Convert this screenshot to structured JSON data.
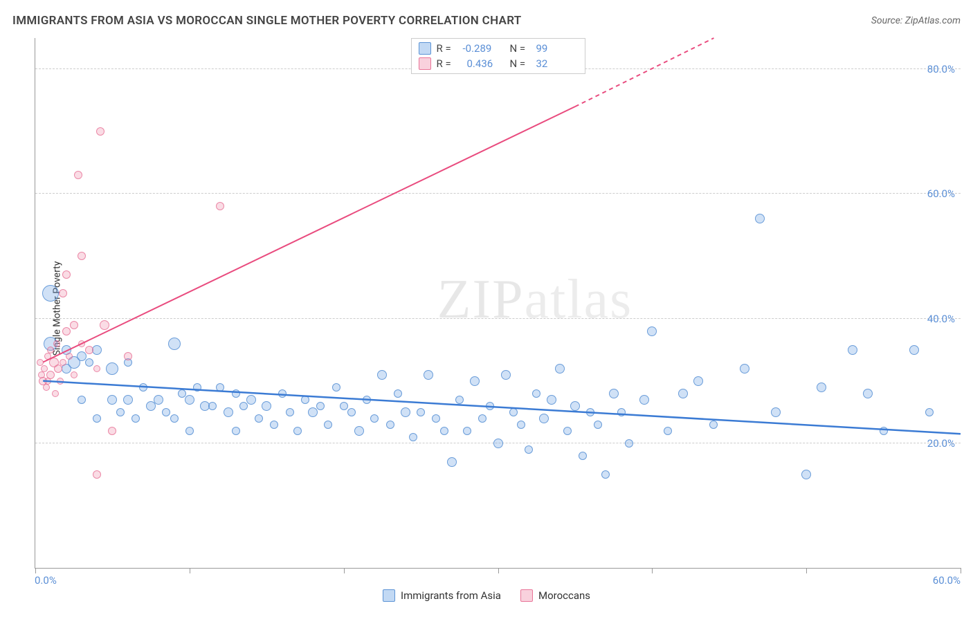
{
  "title": "IMMIGRANTS FROM ASIA VS MOROCCAN SINGLE MOTHER POVERTY CORRELATION CHART",
  "source": "Source: ZipAtlas.com",
  "y_axis_label": "Single Mother Poverty",
  "watermark": {
    "part1": "ZIP",
    "part2": "atlas"
  },
  "chart": {
    "type": "scatter",
    "xlim": [
      0,
      60
    ],
    "ylim": [
      0,
      85
    ],
    "x_ticks": [
      0,
      10,
      20,
      30,
      40,
      50,
      60
    ],
    "x_tick_labels": {
      "0": "0.0%",
      "60": "60.0%"
    },
    "y_ticks": [
      20,
      40,
      60,
      80
    ],
    "y_tick_labels": {
      "20": "20.0%",
      "40": "40.0%",
      "60": "60.0%",
      "80": "80.0%"
    },
    "background_color": "#ffffff",
    "grid_color": "#cccccc",
    "axis_color": "#999999",
    "tick_label_color": "#5b8fd6",
    "series": [
      {
        "name": "Immigrants from Asia",
        "color_fill": "rgba(120,170,230,0.35)",
        "color_stroke": "rgba(80,140,210,0.8)",
        "R": "-0.289",
        "N": "99",
        "trend_color": "#3b7bd4",
        "trend_start": [
          0.5,
          30
        ],
        "trend_end": [
          60,
          21.5
        ],
        "trend_dashed_from": null,
        "points": [
          [
            1,
            44,
            24
          ],
          [
            1,
            36,
            20
          ],
          [
            2,
            32,
            14
          ],
          [
            2,
            35,
            14
          ],
          [
            2.5,
            33,
            18
          ],
          [
            3,
            34,
            14
          ],
          [
            3,
            27,
            12
          ],
          [
            3.5,
            33,
            12
          ],
          [
            4,
            35,
            14
          ],
          [
            4,
            24,
            12
          ],
          [
            5,
            32,
            18
          ],
          [
            5,
            27,
            14
          ],
          [
            5.5,
            25,
            12
          ],
          [
            6,
            33,
            12
          ],
          [
            6,
            27,
            14
          ],
          [
            6.5,
            24,
            12
          ],
          [
            7,
            29,
            12
          ],
          [
            7.5,
            26,
            14
          ],
          [
            8,
            27,
            14
          ],
          [
            8.5,
            25,
            12
          ],
          [
            9,
            36,
            18
          ],
          [
            9,
            24,
            12
          ],
          [
            9.5,
            28,
            12
          ],
          [
            10,
            27,
            14
          ],
          [
            10,
            22,
            12
          ],
          [
            10.5,
            29,
            12
          ],
          [
            11,
            26,
            14
          ],
          [
            11.5,
            26,
            12
          ],
          [
            12,
            29,
            12
          ],
          [
            12.5,
            25,
            14
          ],
          [
            13,
            22,
            12
          ],
          [
            13,
            28,
            12
          ],
          [
            13.5,
            26,
            12
          ],
          [
            14,
            27,
            14
          ],
          [
            14.5,
            24,
            12
          ],
          [
            15,
            26,
            14
          ],
          [
            15.5,
            23,
            12
          ],
          [
            16,
            28,
            12
          ],
          [
            16.5,
            25,
            12
          ],
          [
            17,
            22,
            12
          ],
          [
            17.5,
            27,
            12
          ],
          [
            18,
            25,
            14
          ],
          [
            18.5,
            26,
            12
          ],
          [
            19,
            23,
            12
          ],
          [
            19.5,
            29,
            12
          ],
          [
            20,
            26,
            12
          ],
          [
            20.5,
            25,
            12
          ],
          [
            21,
            22,
            14
          ],
          [
            21.5,
            27,
            12
          ],
          [
            22,
            24,
            12
          ],
          [
            22.5,
            31,
            14
          ],
          [
            23,
            23,
            12
          ],
          [
            23.5,
            28,
            12
          ],
          [
            24,
            25,
            14
          ],
          [
            24.5,
            21,
            12
          ],
          [
            25,
            25,
            12
          ],
          [
            25.5,
            31,
            14
          ],
          [
            26,
            24,
            12
          ],
          [
            26.5,
            22,
            12
          ],
          [
            27,
            17,
            14
          ],
          [
            27.5,
            27,
            12
          ],
          [
            28,
            22,
            12
          ],
          [
            28.5,
            30,
            14
          ],
          [
            29,
            24,
            12
          ],
          [
            29.5,
            26,
            12
          ],
          [
            30,
            20,
            14
          ],
          [
            30.5,
            31,
            14
          ],
          [
            31,
            25,
            12
          ],
          [
            31.5,
            23,
            12
          ],
          [
            32,
            19,
            12
          ],
          [
            32.5,
            28,
            12
          ],
          [
            33,
            24,
            14
          ],
          [
            33.5,
            27,
            14
          ],
          [
            34,
            32,
            14
          ],
          [
            34.5,
            22,
            12
          ],
          [
            35,
            26,
            14
          ],
          [
            35.5,
            18,
            12
          ],
          [
            36,
            25,
            12
          ],
          [
            36.5,
            23,
            12
          ],
          [
            37,
            15,
            12
          ],
          [
            37.5,
            28,
            14
          ],
          [
            38,
            25,
            12
          ],
          [
            38.5,
            20,
            12
          ],
          [
            39.5,
            27,
            14
          ],
          [
            40,
            38,
            14
          ],
          [
            41,
            22,
            12
          ],
          [
            42,
            28,
            14
          ],
          [
            43,
            30,
            14
          ],
          [
            44,
            23,
            12
          ],
          [
            46,
            32,
            14
          ],
          [
            47,
            56,
            14
          ],
          [
            48,
            25,
            14
          ],
          [
            50,
            15,
            14
          ],
          [
            51,
            29,
            14
          ],
          [
            53,
            35,
            14
          ],
          [
            54,
            28,
            14
          ],
          [
            55,
            22,
            12
          ],
          [
            57,
            35,
            14
          ],
          [
            58,
            25,
            12
          ]
        ]
      },
      {
        "name": "Moroccans",
        "color_fill": "rgba(240,140,170,0.3)",
        "color_stroke": "rgba(230,100,140,0.7)",
        "R": "0.436",
        "N": "32",
        "trend_color": "#e94b7e",
        "trend_start": [
          0.5,
          33
        ],
        "trend_end": [
          44,
          85
        ],
        "trend_dashed_from": [
          35,
          74
        ],
        "points": [
          [
            0.3,
            33,
            10
          ],
          [
            0.4,
            31,
            10
          ],
          [
            0.5,
            30,
            12
          ],
          [
            0.6,
            32,
            10
          ],
          [
            0.7,
            29,
            10
          ],
          [
            0.8,
            34,
            10
          ],
          [
            0.8,
            30,
            10
          ],
          [
            1,
            31,
            12
          ],
          [
            1,
            35,
            10
          ],
          [
            1.2,
            33,
            14
          ],
          [
            1.3,
            28,
            10
          ],
          [
            1.4,
            36,
            10
          ],
          [
            1.5,
            32,
            12
          ],
          [
            1.6,
            30,
            10
          ],
          [
            1.8,
            44,
            12
          ],
          [
            1.8,
            33,
            10
          ],
          [
            2,
            38,
            12
          ],
          [
            2,
            47,
            12
          ],
          [
            2.2,
            34,
            10
          ],
          [
            2.5,
            31,
            10
          ],
          [
            2.5,
            39,
            12
          ],
          [
            2.8,
            63,
            12
          ],
          [
            3,
            50,
            12
          ],
          [
            3,
            36,
            10
          ],
          [
            3.5,
            35,
            12
          ],
          [
            4,
            15,
            12
          ],
          [
            4,
            32,
            10
          ],
          [
            4.5,
            39,
            14
          ],
          [
            5,
            22,
            12
          ],
          [
            6,
            34,
            12
          ],
          [
            4.2,
            70,
            12
          ],
          [
            12,
            58,
            12
          ]
        ]
      }
    ]
  },
  "legend_top": [
    {
      "swatch": "blue",
      "R": "-0.289",
      "N": "99"
    },
    {
      "swatch": "pink",
      "R": "0.436",
      "N": "32"
    }
  ],
  "legend_bottom": [
    {
      "swatch": "blue",
      "label": "Immigrants from Asia"
    },
    {
      "swatch": "pink",
      "label": "Moroccans"
    }
  ]
}
